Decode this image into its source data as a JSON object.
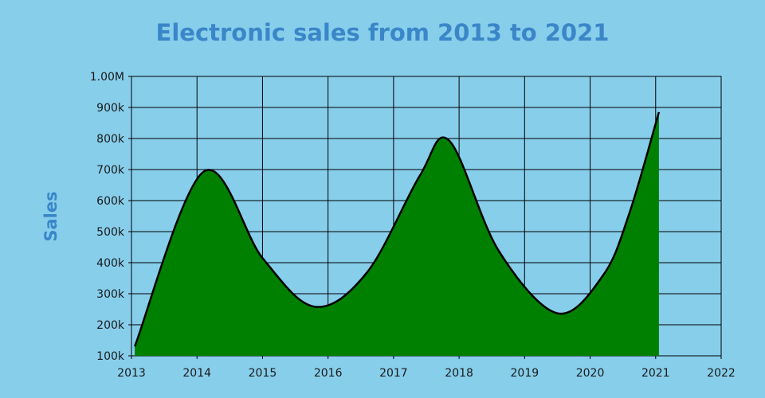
{
  "chart_data": {
    "type": "area",
    "title": "Electronic sales from 2013 to 2021",
    "xlabel": "",
    "ylabel": "Sales",
    "x_ticks": [
      "2013",
      "2014",
      "2015",
      "2016",
      "2017",
      "2018",
      "2019",
      "2020",
      "2021",
      "2022"
    ],
    "xlim": [
      2013,
      2022
    ],
    "y_ticks": [
      "100k",
      "200k",
      "300k",
      "400k",
      "500k",
      "600k",
      "700k",
      "800k",
      "900k",
      "1.00M"
    ],
    "ylim": [
      100000,
      1000000
    ],
    "grid": true,
    "legend": "none",
    "series": [
      {
        "x": [
          2013.05,
          2014.1,
          2015.0,
          2015.8,
          2016.6,
          2017.4,
          2017.85,
          2018.6,
          2019.5,
          2020.2,
          2020.6,
          2021.05
        ],
        "values": [
          130000,
          693000,
          415000,
          258000,
          370000,
          680000,
          793000,
          440000,
          237000,
          360000,
          560000,
          885000
        ],
        "fill": "#008000",
        "stroke": "#000000"
      }
    ]
  }
}
